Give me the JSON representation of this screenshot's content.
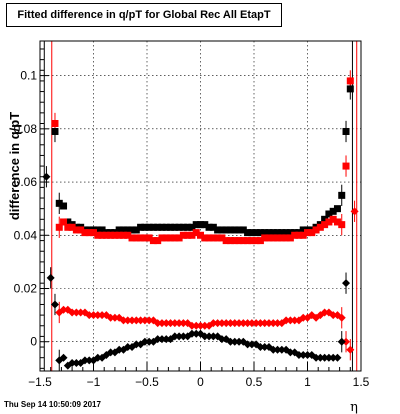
{
  "chart_data": {
    "type": "scatter",
    "title": "Fitted difference in q/pT for Global Rec All EtapT",
    "xlabel": "η",
    "ylabel": "difference in q/pT",
    "xlim": [
      -1.5,
      1.5
    ],
    "ylim": [
      -0.011,
      0.113
    ],
    "xticks": [
      -1.5,
      -1,
      -0.5,
      0,
      0.5,
      1,
      1.5
    ],
    "xtick_labels": [
      "−1.5",
      "−1",
      "−0.5",
      "0",
      "0.5",
      "1",
      "1.5"
    ],
    "yticks": [
      0,
      0.02,
      0.04,
      0.06,
      0.08,
      0.1
    ],
    "ytick_labels": [
      "0",
      "0.02",
      "0.04",
      "0.06",
      "0.08",
      "0.1"
    ],
    "grid": true,
    "series": [
      {
        "color": "#000000",
        "marker": "square",
        "x": [
          -1.36,
          -1.32,
          -1.28,
          -1.24,
          -1.2,
          -1.16,
          -1.12,
          -1.08,
          -1.04,
          -1.0,
          -0.96,
          -0.92,
          -0.88,
          -0.84,
          -0.8,
          -0.76,
          -0.72,
          -0.68,
          -0.64,
          -0.6,
          -0.56,
          -0.52,
          -0.48,
          -0.44,
          -0.4,
          -0.36,
          -0.32,
          -0.28,
          -0.24,
          -0.2,
          -0.16,
          -0.12,
          -0.08,
          -0.04,
          0.0,
          0.04,
          0.08,
          0.12,
          0.16,
          0.2,
          0.24,
          0.28,
          0.32,
          0.36,
          0.4,
          0.44,
          0.48,
          0.52,
          0.56,
          0.6,
          0.64,
          0.68,
          0.72,
          0.76,
          0.8,
          0.84,
          0.88,
          0.92,
          0.96,
          1.0,
          1.04,
          1.08,
          1.12,
          1.16,
          1.2,
          1.24,
          1.28,
          1.32,
          1.36,
          1.4
        ],
        "y": [
          0.079,
          0.052,
          0.051,
          0.045,
          0.044,
          0.043,
          0.043,
          0.042,
          0.042,
          0.042,
          0.042,
          0.042,
          0.041,
          0.041,
          0.041,
          0.042,
          0.042,
          0.042,
          0.042,
          0.042,
          0.043,
          0.043,
          0.043,
          0.043,
          0.043,
          0.043,
          0.043,
          0.043,
          0.043,
          0.043,
          0.043,
          0.043,
          0.043,
          0.044,
          0.044,
          0.044,
          0.043,
          0.043,
          0.042,
          0.042,
          0.042,
          0.042,
          0.042,
          0.042,
          0.042,
          0.041,
          0.041,
          0.041,
          0.041,
          0.041,
          0.041,
          0.041,
          0.041,
          0.041,
          0.041,
          0.041,
          0.041,
          0.041,
          0.042,
          0.042,
          0.042,
          0.043,
          0.044,
          0.046,
          0.048,
          0.049,
          0.05,
          0.055,
          0.079,
          0.095
        ]
      },
      {
        "color": "#ff0000",
        "marker": "square",
        "x": [
          -1.36,
          -1.32,
          -1.28,
          -1.24,
          -1.2,
          -1.16,
          -1.12,
          -1.08,
          -1.04,
          -1.0,
          -0.96,
          -0.92,
          -0.88,
          -0.84,
          -0.8,
          -0.76,
          -0.72,
          -0.68,
          -0.64,
          -0.6,
          -0.56,
          -0.52,
          -0.48,
          -0.44,
          -0.4,
          -0.36,
          -0.32,
          -0.28,
          -0.24,
          -0.2,
          -0.16,
          -0.12,
          -0.08,
          -0.04,
          0.0,
          0.04,
          0.08,
          0.12,
          0.16,
          0.2,
          0.24,
          0.28,
          0.32,
          0.36,
          0.4,
          0.44,
          0.48,
          0.52,
          0.56,
          0.6,
          0.64,
          0.68,
          0.72,
          0.76,
          0.8,
          0.84,
          0.88,
          0.92,
          0.96,
          1.0,
          1.04,
          1.08,
          1.12,
          1.16,
          1.2,
          1.24,
          1.28,
          1.32,
          1.36,
          1.4
        ],
        "y": [
          0.082,
          0.043,
          0.045,
          0.043,
          0.043,
          0.042,
          0.042,
          0.041,
          0.041,
          0.041,
          0.04,
          0.04,
          0.04,
          0.04,
          0.04,
          0.04,
          0.04,
          0.04,
          0.039,
          0.039,
          0.039,
          0.039,
          0.039,
          0.038,
          0.038,
          0.039,
          0.039,
          0.039,
          0.039,
          0.039,
          0.04,
          0.04,
          0.04,
          0.041,
          0.04,
          0.039,
          0.039,
          0.039,
          0.039,
          0.039,
          0.038,
          0.038,
          0.038,
          0.038,
          0.038,
          0.038,
          0.038,
          0.038,
          0.038,
          0.039,
          0.039,
          0.039,
          0.039,
          0.039,
          0.039,
          0.039,
          0.04,
          0.04,
          0.04,
          0.041,
          0.041,
          0.042,
          0.043,
          0.044,
          0.045,
          0.046,
          0.045,
          0.044,
          0.066,
          0.098
        ]
      },
      {
        "color": "#ff0000",
        "marker": "diamond",
        "x": [
          -1.32,
          -1.28,
          -1.24,
          -1.2,
          -1.16,
          -1.12,
          -1.08,
          -1.04,
          -1.0,
          -0.96,
          -0.92,
          -0.88,
          -0.84,
          -0.8,
          -0.76,
          -0.72,
          -0.68,
          -0.64,
          -0.6,
          -0.56,
          -0.52,
          -0.48,
          -0.44,
          -0.4,
          -0.36,
          -0.32,
          -0.28,
          -0.24,
          -0.2,
          -0.16,
          -0.12,
          -0.08,
          -0.04,
          0.0,
          0.04,
          0.08,
          0.12,
          0.16,
          0.2,
          0.24,
          0.28,
          0.32,
          0.36,
          0.4,
          0.44,
          0.48,
          0.52,
          0.56,
          0.6,
          0.64,
          0.68,
          0.72,
          0.76,
          0.8,
          0.84,
          0.88,
          0.92,
          0.96,
          1.0,
          1.04,
          1.08,
          1.12,
          1.16,
          1.2,
          1.24,
          1.28,
          1.32,
          1.36,
          1.4,
          1.44
        ],
        "y": [
          0.011,
          0.012,
          0.012,
          0.011,
          0.011,
          0.011,
          0.011,
          0.01,
          0.01,
          0.01,
          0.01,
          0.01,
          0.009,
          0.009,
          0.009,
          0.008,
          0.008,
          0.008,
          0.008,
          0.008,
          0.008,
          0.008,
          0.008,
          0.007,
          0.007,
          0.007,
          0.007,
          0.007,
          0.007,
          0.007,
          0.007,
          0.006,
          0.006,
          0.006,
          0.006,
          0.006,
          0.007,
          0.007,
          0.007,
          0.007,
          0.007,
          0.007,
          0.007,
          0.007,
          0.007,
          0.007,
          0.007,
          0.007,
          0.007,
          0.007,
          0.007,
          0.007,
          0.007,
          0.008,
          0.008,
          0.008,
          0.008,
          0.009,
          0.009,
          0.01,
          0.009,
          0.01,
          0.011,
          0.011,
          0.01,
          0.01,
          0.009,
          0.0,
          -0.003,
          0.049
        ]
      },
      {
        "color": "#000000",
        "marker": "diamond",
        "x": [
          -1.44,
          -1.4,
          -1.36,
          -1.32,
          -1.28,
          -1.24,
          -1.2,
          -1.16,
          -1.12,
          -1.08,
          -1.04,
          -1.0,
          -0.96,
          -0.92,
          -0.88,
          -0.84,
          -0.8,
          -0.76,
          -0.72,
          -0.68,
          -0.64,
          -0.6,
          -0.56,
          -0.52,
          -0.48,
          -0.44,
          -0.4,
          -0.36,
          -0.32,
          -0.28,
          -0.24,
          -0.2,
          -0.16,
          -0.12,
          -0.08,
          -0.04,
          0.0,
          0.04,
          0.08,
          0.12,
          0.16,
          0.2,
          0.24,
          0.28,
          0.32,
          0.36,
          0.4,
          0.44,
          0.48,
          0.52,
          0.56,
          0.6,
          0.64,
          0.68,
          0.72,
          0.76,
          0.8,
          0.84,
          0.88,
          0.92,
          0.96,
          1.0,
          1.04,
          1.08,
          1.12,
          1.16,
          1.2,
          1.24,
          1.28,
          1.32,
          1.36
        ],
        "y": [
          0.062,
          0.024,
          0.014,
          -0.007,
          -0.006,
          -0.009,
          -0.008,
          -0.008,
          -0.008,
          -0.007,
          -0.007,
          -0.007,
          -0.006,
          -0.006,
          -0.005,
          -0.004,
          -0.004,
          -0.003,
          -0.003,
          -0.002,
          -0.002,
          -0.001,
          -0.001,
          0.0,
          0.0,
          0.0,
          0.001,
          0.001,
          0.001,
          0.001,
          0.002,
          0.002,
          0.002,
          0.002,
          0.003,
          0.003,
          0.003,
          0.002,
          0.002,
          0.002,
          0.002,
          0.001,
          0.001,
          0.0,
          0.0,
          0.0,
          0.0,
          -0.001,
          -0.001,
          -0.001,
          -0.002,
          -0.002,
          -0.002,
          -0.003,
          -0.003,
          -0.003,
          -0.003,
          -0.004,
          -0.004,
          -0.005,
          -0.005,
          -0.005,
          -0.005,
          -0.006,
          -0.006,
          -0.006,
          -0.006,
          -0.006,
          -0.006,
          0.0,
          0.022
        ]
      }
    ]
  },
  "footer": {
    "timestamp": "Thu Sep 14 10:50:09 2017"
  }
}
